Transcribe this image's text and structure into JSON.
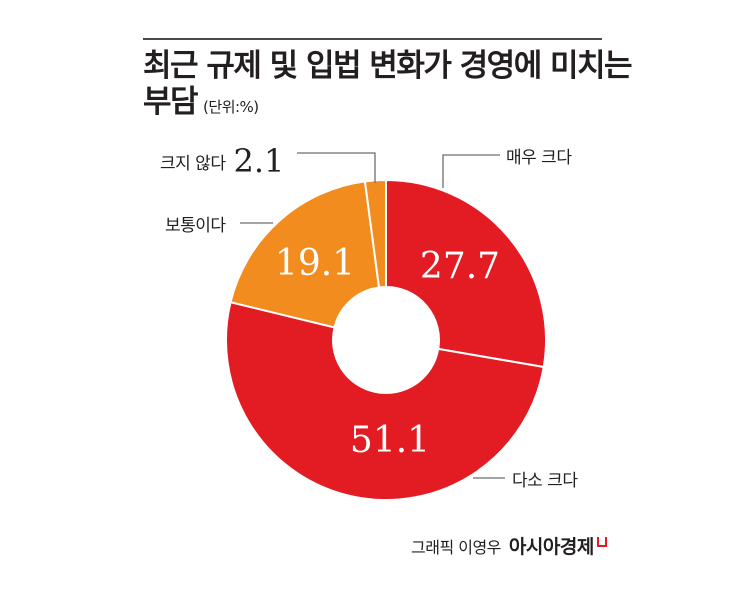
{
  "header": {
    "title_line1": "최근 규제 및 입법 변화가 경영에 미치는",
    "title_line2": "부담",
    "unit": "(단위:%)"
  },
  "labels": {
    "very_large": "매우 크다",
    "somewhat_large": "다소 크다",
    "moderate": "보통이다",
    "not_large": "크지 않다",
    "not_large_value": "2.1"
  },
  "credit": {
    "graphic": "그래픽 이영우",
    "brand": "아시아경제"
  },
  "colors": {
    "red": "#E31B23",
    "orange": "#F28C1E",
    "separator": "#ffffff",
    "leader": "#6d6e71"
  },
  "chart_data": {
    "type": "pie",
    "subtype": "donut",
    "title": "최근 규제 및 입법 변화가 경영에 미치는 부담",
    "unit": "%",
    "categories": [
      "매우 크다",
      "다소 크다",
      "보통이다",
      "크지 않다"
    ],
    "values": [
      27.7,
      51.1,
      19.1,
      2.1
    ],
    "colors": [
      "#E31B23",
      "#E31B23",
      "#F28C1E",
      "#F28C1E"
    ],
    "start_angle_deg": -90,
    "direction": "clockwise",
    "value_labels": [
      "27.7",
      "51.1",
      "19.1",
      "2.1"
    ],
    "legend": "none (callout labels)"
  }
}
